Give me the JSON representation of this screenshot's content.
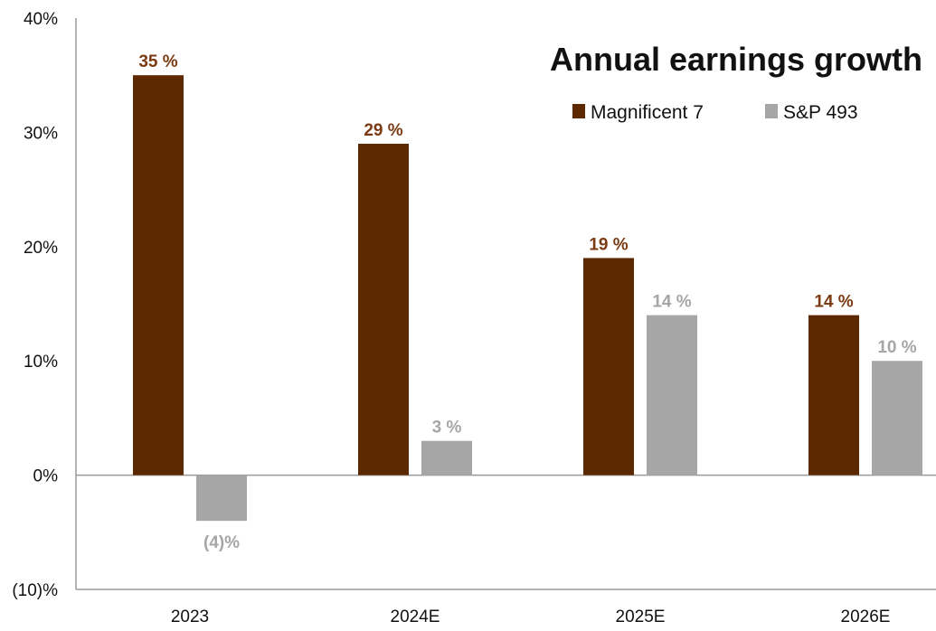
{
  "chart_data": {
    "type": "bar",
    "title": "Annual earnings growth",
    "categories": [
      "2023",
      "2024E",
      "2025E",
      "2026E"
    ],
    "series": [
      {
        "name": "Magnificent 7",
        "color": "#5c2800",
        "label_color": "#7a3a12",
        "values": [
          35,
          29,
          19,
          14
        ],
        "labels": [
          "35 %",
          "29 %",
          "19 %",
          "14 %"
        ]
      },
      {
        "name": "S&P 493",
        "color": "#a6a6a6",
        "label_color": "#a6a6a6",
        "values": [
          -4,
          3,
          14,
          10
        ],
        "labels": [
          "(4)%",
          "3 %",
          "14 %",
          "10 %"
        ]
      }
    ],
    "ylim": [
      -10,
      40
    ],
    "yticks": [
      40,
      30,
      20,
      10,
      0,
      -10
    ],
    "ytick_labels": [
      "40%",
      "30%",
      "20%",
      "10%",
      "0%",
      "(10)%"
    ],
    "legend_position": "top-right",
    "grid": false
  }
}
